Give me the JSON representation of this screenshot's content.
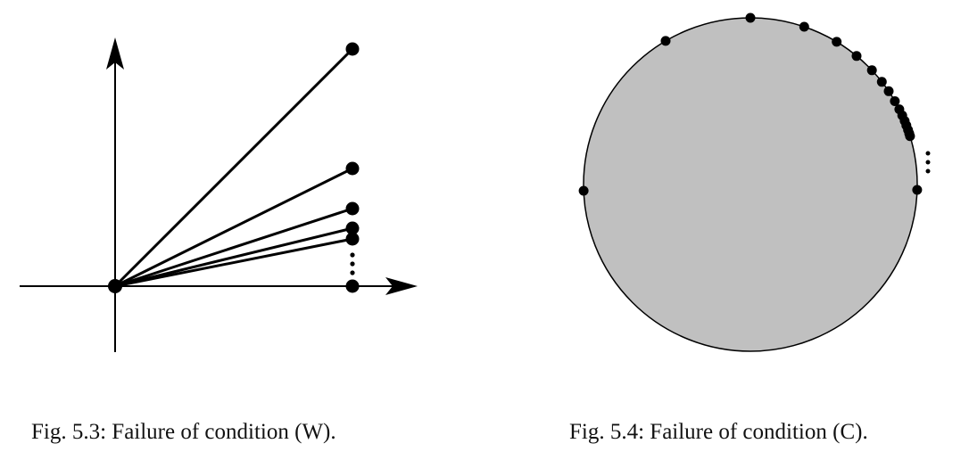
{
  "figures": [
    {
      "caption": "Fig. 5.3: Failure of condition (W)."
    },
    {
      "caption": "Fig. 5.4: Failure of condition (C)."
    }
  ],
  "colors": {
    "ink": "#000000",
    "disk_fill": "#c0c0c0",
    "background": "#ffffff"
  }
}
